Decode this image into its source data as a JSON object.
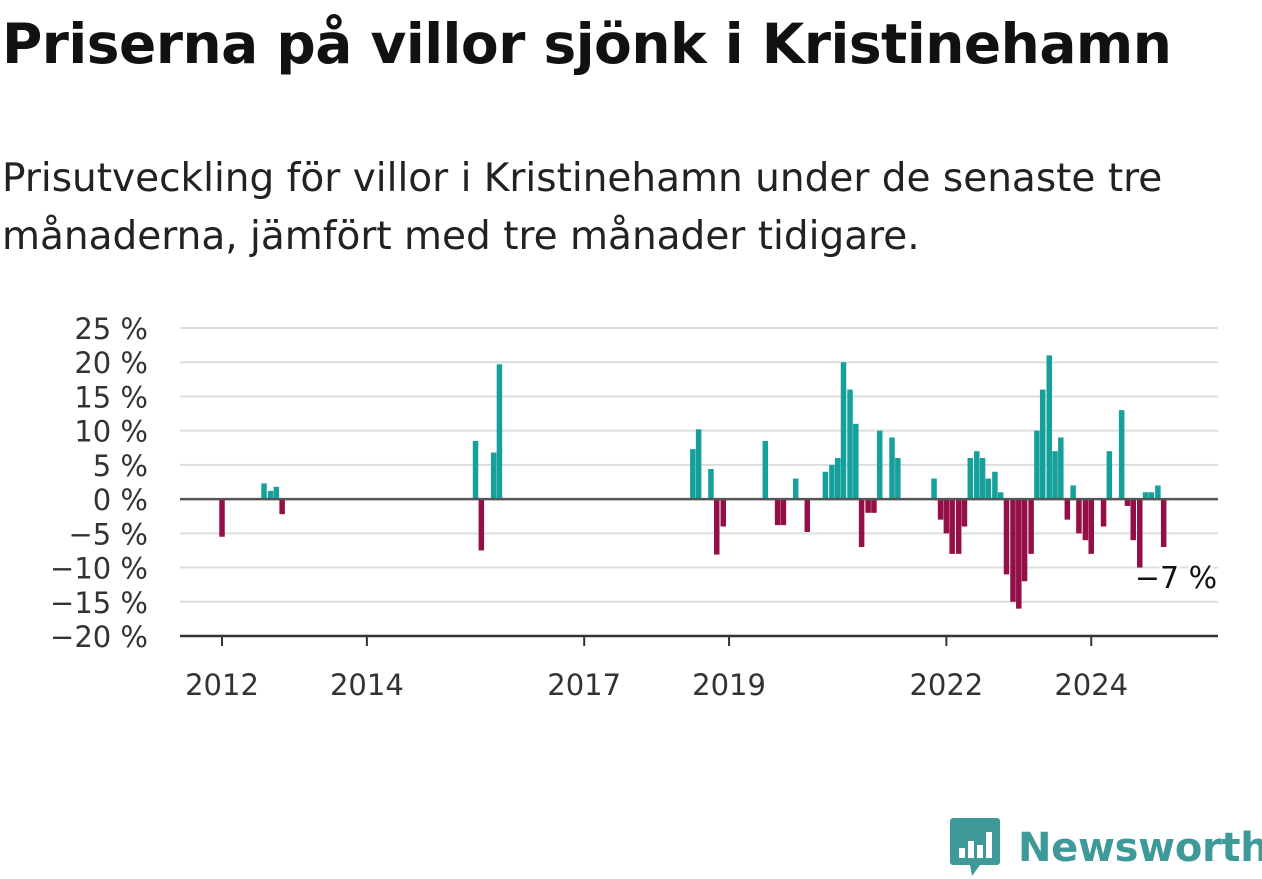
{
  "title": "Priserna på villor sjönk i Kristinehamn",
  "subtitle": "Prisutveckling för villor i Kristinehamn under de senaste tre månaderna, jämfört med tre månader tidigare.",
  "brand": "Newsworthy",
  "colors": {
    "positive": "#16a09b",
    "negative": "#930f46",
    "grid": "#dddddd",
    "axis": "#333333",
    "brand": "#3e9a98"
  },
  "chart_data": {
    "type": "bar",
    "title": "",
    "xlabel": "",
    "ylabel": "",
    "ylim": [
      -20,
      25
    ],
    "xlim": [
      2011.42,
      2025.75
    ],
    "yticks": [
      {
        "value": 25,
        "label": "25 %"
      },
      {
        "value": 20,
        "label": "20 %"
      },
      {
        "value": 15,
        "label": "15 %"
      },
      {
        "value": 10,
        "label": "10 %"
      },
      {
        "value": 5,
        "label": "5 %"
      },
      {
        "value": 0,
        "label": "0 %"
      },
      {
        "value": -5,
        "label": "−5 %"
      },
      {
        "value": -10,
        "label": "−10 %"
      },
      {
        "value": -15,
        "label": "−15 %"
      },
      {
        "value": -20,
        "label": "−20 %"
      }
    ],
    "xticks": [
      {
        "value": 2012,
        "label": "2012"
      },
      {
        "value": 2014,
        "label": "2014"
      },
      {
        "value": 2017,
        "label": "2017"
      },
      {
        "value": 2019,
        "label": "2019"
      },
      {
        "value": 2022,
        "label": "2022"
      },
      {
        "value": 2024,
        "label": "2024"
      }
    ],
    "grid": true,
    "annotation": {
      "x": 2025.17,
      "y": -7,
      "label": "−7 %"
    },
    "bars": [
      {
        "x": 2012.0,
        "y": -5.5
      },
      {
        "x": 2012.58,
        "y": 2.3
      },
      {
        "x": 2012.67,
        "y": 1.2
      },
      {
        "x": 2012.75,
        "y": 1.8
      },
      {
        "x": 2012.83,
        "y": -2.2
      },
      {
        "x": 2015.5,
        "y": 8.5
      },
      {
        "x": 2015.58,
        "y": -7.5
      },
      {
        "x": 2015.75,
        "y": 6.8
      },
      {
        "x": 2015.83,
        "y": 19.7
      },
      {
        "x": 2018.5,
        "y": 7.3
      },
      {
        "x": 2018.58,
        "y": 10.2
      },
      {
        "x": 2018.75,
        "y": 4.4
      },
      {
        "x": 2018.83,
        "y": -8.1
      },
      {
        "x": 2018.92,
        "y": -4.0
      },
      {
        "x": 2019.5,
        "y": 8.5
      },
      {
        "x": 2019.67,
        "y": -3.8
      },
      {
        "x": 2019.75,
        "y": -3.8
      },
      {
        "x": 2019.92,
        "y": 3.0
      },
      {
        "x": 2020.08,
        "y": -4.8
      },
      {
        "x": 2020.33,
        "y": 4.0
      },
      {
        "x": 2020.42,
        "y": 5.0
      },
      {
        "x": 2020.5,
        "y": 6.0
      },
      {
        "x": 2020.58,
        "y": 20.0
      },
      {
        "x": 2020.67,
        "y": 16.0
      },
      {
        "x": 2020.75,
        "y": 11.0
      },
      {
        "x": 2020.83,
        "y": -7.0
      },
      {
        "x": 2020.92,
        "y": -2.0
      },
      {
        "x": 2021.0,
        "y": -2.0
      },
      {
        "x": 2021.08,
        "y": 10.0
      },
      {
        "x": 2021.25,
        "y": 9.0
      },
      {
        "x": 2021.33,
        "y": 6.0
      },
      {
        "x": 2021.83,
        "y": 3.0
      },
      {
        "x": 2021.92,
        "y": -3.0
      },
      {
        "x": 2022.0,
        "y": -5.0
      },
      {
        "x": 2022.08,
        "y": -8.0
      },
      {
        "x": 2022.17,
        "y": -8.0
      },
      {
        "x": 2022.25,
        "y": -4.0
      },
      {
        "x": 2022.33,
        "y": 6.0
      },
      {
        "x": 2022.42,
        "y": 7.0
      },
      {
        "x": 2022.5,
        "y": 6.0
      },
      {
        "x": 2022.58,
        "y": 3.0
      },
      {
        "x": 2022.67,
        "y": 4.0
      },
      {
        "x": 2022.75,
        "y": 1.0
      },
      {
        "x": 2022.83,
        "y": -11.0
      },
      {
        "x": 2022.92,
        "y": -15.0
      },
      {
        "x": 2023.0,
        "y": -16.0
      },
      {
        "x": 2023.08,
        "y": -12.0
      },
      {
        "x": 2023.17,
        "y": -8.0
      },
      {
        "x": 2023.25,
        "y": 10.0
      },
      {
        "x": 2023.33,
        "y": 16.0
      },
      {
        "x": 2023.42,
        "y": 21.0
      },
      {
        "x": 2023.5,
        "y": 7.0
      },
      {
        "x": 2023.58,
        "y": 9.0
      },
      {
        "x": 2023.67,
        "y": -3.0
      },
      {
        "x": 2023.75,
        "y": 2.0
      },
      {
        "x": 2023.83,
        "y": -5.0
      },
      {
        "x": 2023.92,
        "y": -6.0
      },
      {
        "x": 2024.0,
        "y": -8.0
      },
      {
        "x": 2024.08,
        "y": 0.0
      },
      {
        "x": 2024.17,
        "y": -4.0
      },
      {
        "x": 2024.25,
        "y": 7.0
      },
      {
        "x": 2024.42,
        "y": 13.0
      },
      {
        "x": 2024.5,
        "y": -1.0
      },
      {
        "x": 2024.58,
        "y": -6.0
      },
      {
        "x": 2024.67,
        "y": -10.0
      },
      {
        "x": 2024.75,
        "y": 1.0
      },
      {
        "x": 2024.83,
        "y": 1.0
      },
      {
        "x": 2024.92,
        "y": 2.0
      },
      {
        "x": 2025.0,
        "y": -7.0
      }
    ]
  }
}
